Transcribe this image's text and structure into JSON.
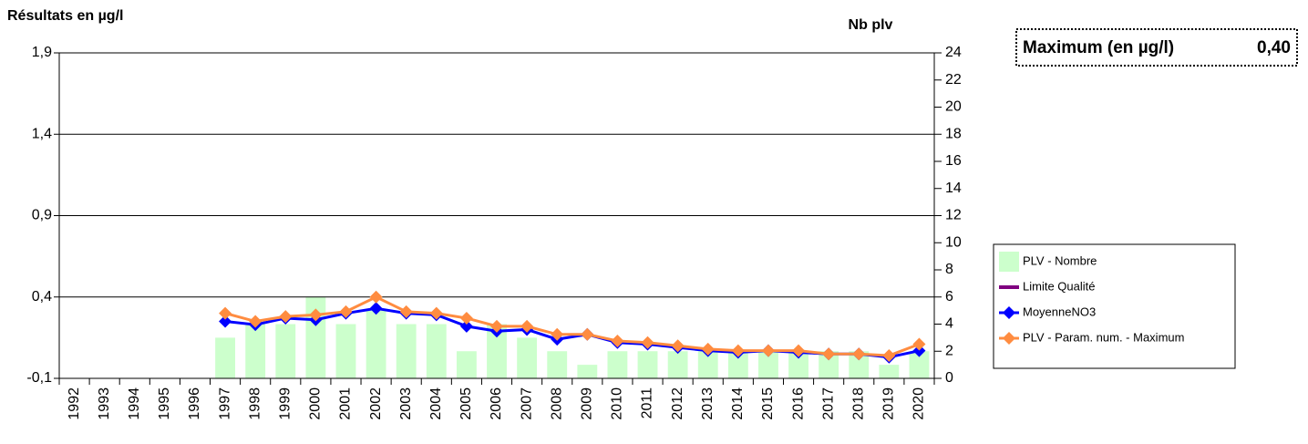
{
  "chart_data": {
    "type": "bar_line",
    "y_label": "Résultats en µg/l",
    "y2_label": "Nb plv",
    "summary": {
      "label": "Maximum (en µg/l)",
      "value": "0,40"
    },
    "categories": [
      "1992",
      "1993",
      "1994",
      "1995",
      "1996",
      "1997",
      "1998",
      "1999",
      "2000",
      "2001",
      "2002",
      "2003",
      "2004",
      "2005",
      "2006",
      "2007",
      "2008",
      "2009",
      "2010",
      "2011",
      "2012",
      "2013",
      "2014",
      "2015",
      "2016",
      "2017",
      "2018",
      "2019",
      "2020"
    ],
    "ylim": [
      -0.1,
      1.9
    ],
    "yticks": [
      {
        "value": -0.1,
        "label": "-0,1"
      },
      {
        "value": 0.4,
        "label": "0,4"
      },
      {
        "value": 0.9,
        "label": "0,9"
      },
      {
        "value": 1.4,
        "label": "1,4"
      },
      {
        "value": 1.9,
        "label": "1,9"
      }
    ],
    "y2lim": [
      0,
      24
    ],
    "y2ticks": [
      0,
      2,
      4,
      6,
      8,
      10,
      12,
      14,
      16,
      18,
      20,
      22,
      24
    ],
    "grid": true,
    "legend": "right",
    "series": [
      {
        "name": "PLV - Nombre",
        "type": "bar",
        "axis": "y2",
        "color": "#ccffcc",
        "values": [
          null,
          null,
          null,
          null,
          null,
          3,
          4,
          4,
          6,
          4,
          5,
          4,
          4,
          2,
          4,
          3,
          2,
          1,
          2,
          2,
          2,
          2,
          2,
          2,
          2,
          2,
          2,
          1,
          2
        ]
      },
      {
        "name": "Limite Qualité",
        "type": "line",
        "color": "#800080",
        "values": [
          null,
          null,
          null,
          null,
          null,
          null,
          null,
          null,
          null,
          null,
          null,
          null,
          null,
          null,
          null,
          null,
          null,
          null,
          null,
          null,
          null,
          null,
          null,
          null,
          null,
          null,
          null,
          null,
          null
        ]
      },
      {
        "name": "MoyenneNO3",
        "type": "line",
        "color": "#0000ff",
        "values": [
          null,
          null,
          null,
          null,
          null,
          0.25,
          0.23,
          0.27,
          0.26,
          0.3,
          0.33,
          0.3,
          0.29,
          0.22,
          0.19,
          0.2,
          0.14,
          0.17,
          0.12,
          0.11,
          0.09,
          0.07,
          0.06,
          0.07,
          0.06,
          0.05,
          0.05,
          0.03,
          0.07
        ]
      },
      {
        "name": "PLV - Param. num. - Maximum",
        "type": "line",
        "color": "#ff8c40",
        "values": [
          null,
          null,
          null,
          null,
          null,
          0.3,
          0.25,
          0.28,
          0.29,
          0.31,
          0.4,
          0.31,
          0.3,
          0.27,
          0.22,
          0.22,
          0.17,
          0.17,
          0.13,
          0.12,
          0.1,
          0.08,
          0.07,
          0.07,
          0.07,
          0.05,
          0.05,
          0.04,
          0.11
        ]
      }
    ]
  }
}
